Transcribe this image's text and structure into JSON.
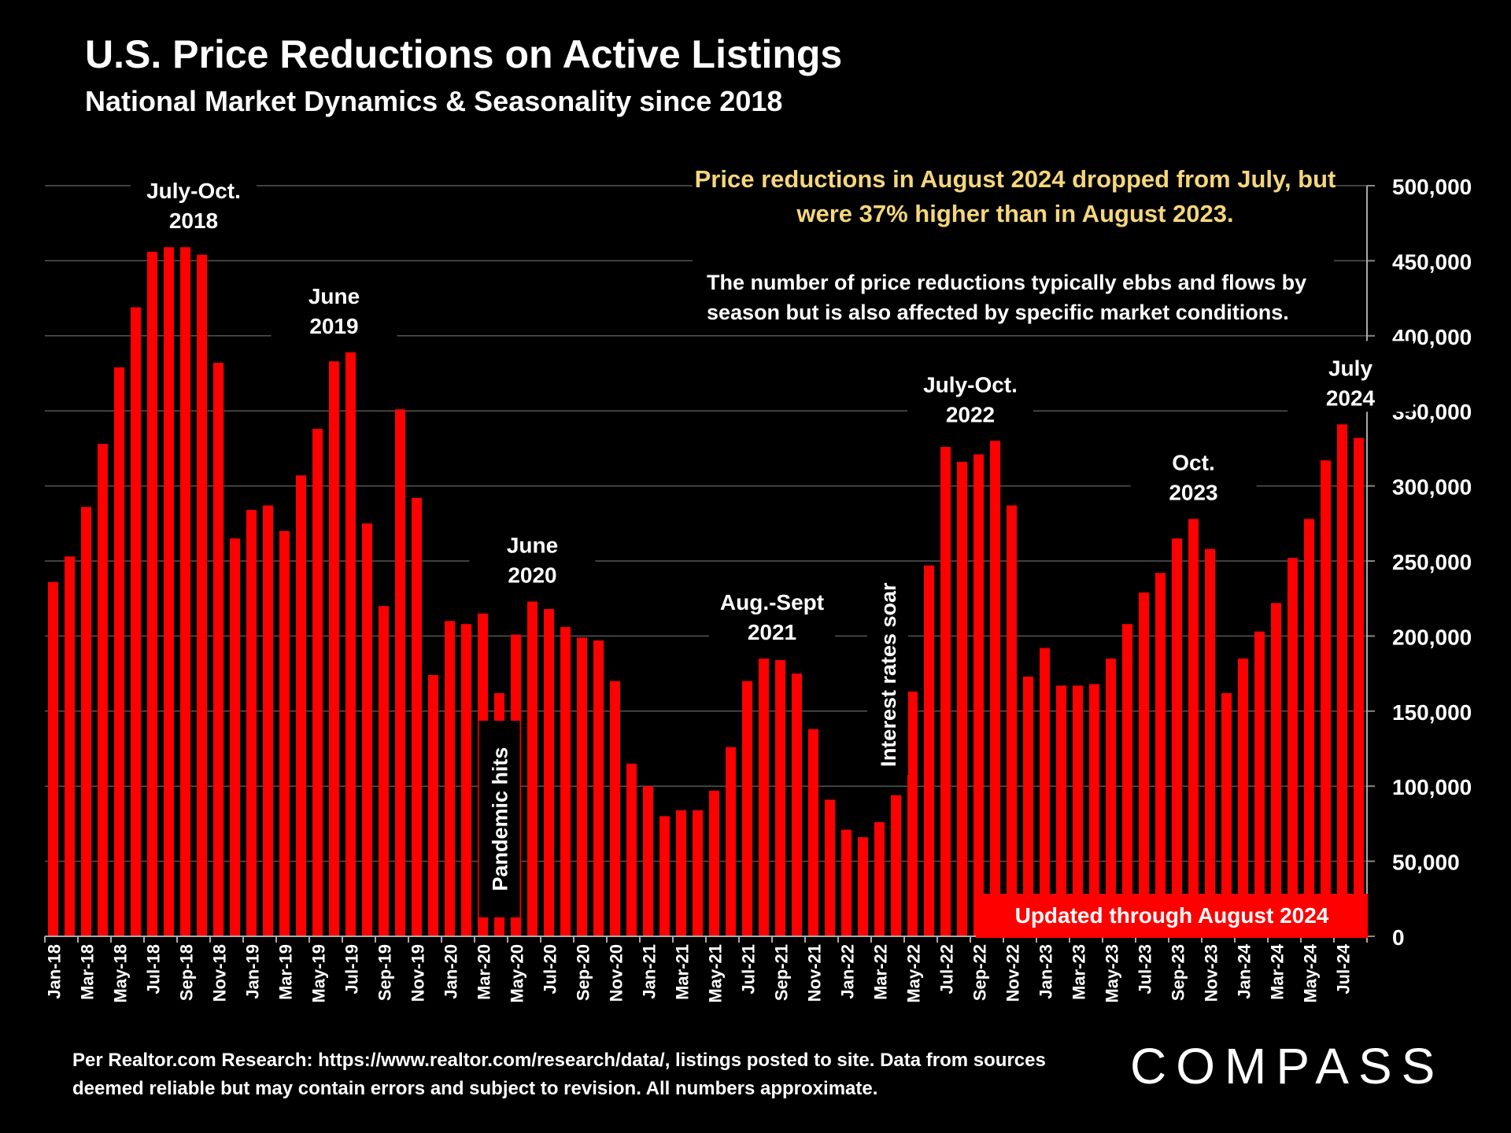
{
  "header": {
    "title": "U.S. Price Reductions on Active Listings",
    "subtitle": "National Market Dynamics & Seasonality since 2018"
  },
  "callouts": {
    "headline": "Price reductions in August 2024 dropped from July, but were 37% higher than in August 2023.",
    "note": "The number of price reductions typically ebbs and flows by season but is also affected by specific market conditions.",
    "updated_badge": "Updated through August 2024"
  },
  "footer": {
    "source": "Per Realtor.com Research:  https://www.realtor.com/research/data/, listings posted to site. Data from sources deemed reliable but may contain errors and subject to revision. All numbers approximate."
  },
  "brand": {
    "logo_text": "COMPASS"
  },
  "colors": {
    "bar": "#ff0000",
    "grid": "#555555",
    "background": "#000000",
    "headline": "#f5d67a"
  },
  "chart_data": {
    "type": "bar",
    "x": [
      "Jan-18",
      "Feb-18",
      "Mar-18",
      "Apr-18",
      "May-18",
      "Jun-18",
      "Jul-18",
      "Aug-18",
      "Sep-18",
      "Oct-18",
      "Nov-18",
      "Dec-18",
      "Jan-19",
      "Feb-19",
      "Mar-19",
      "Apr-19",
      "May-19",
      "Jun-19",
      "Jul-19",
      "Aug-19",
      "Sep-19",
      "Oct-19",
      "Nov-19",
      "Dec-19",
      "Jan-20",
      "Feb-20",
      "Mar-20",
      "Apr-20",
      "May-20",
      "Jun-20",
      "Jul-20",
      "Aug-20",
      "Sep-20",
      "Oct-20",
      "Nov-20",
      "Dec-20",
      "Jan-21",
      "Feb-21",
      "Mar-21",
      "Apr-21",
      "May-21",
      "Jun-21",
      "Jul-21",
      "Aug-21",
      "Sep-21",
      "Oct-21",
      "Nov-21",
      "Dec-21",
      "Jan-22",
      "Feb-22",
      "Mar-22",
      "Apr-22",
      "May-22",
      "Jun-22",
      "Jul-22",
      "Aug-22",
      "Sep-22",
      "Oct-22",
      "Nov-22",
      "Dec-22",
      "Jan-23",
      "Feb-23",
      "Mar-23",
      "Apr-23",
      "May-23",
      "Jun-23",
      "Jul-23",
      "Aug-23",
      "Sep-23",
      "Oct-23",
      "Nov-23",
      "Dec-23",
      "Jan-24",
      "Feb-24",
      "Mar-24",
      "Apr-24",
      "May-24",
      "Jun-24",
      "Jul-24",
      "Aug-24"
    ],
    "values": [
      236000,
      253000,
      286000,
      328000,
      379000,
      419000,
      456000,
      459000,
      459000,
      454000,
      382000,
      265000,
      284000,
      287000,
      270000,
      307000,
      338000,
      383000,
      389000,
      275000,
      220000,
      351000,
      292000,
      174000,
      210000,
      208000,
      215000,
      162000,
      201000,
      223000,
      218000,
      206000,
      199000,
      197000,
      170000,
      115000,
      100000,
      80000,
      84000,
      84000,
      97000,
      126000,
      170000,
      185000,
      184000,
      175000,
      138000,
      91000,
      71000,
      66000,
      76000,
      94000,
      163000,
      247000,
      326000,
      316000,
      321000,
      330000,
      287000,
      173000,
      192000,
      167000,
      167000,
      168000,
      185000,
      208000,
      229000,
      242000,
      265000,
      278000,
      258000,
      162000,
      185000,
      203000,
      222000,
      252000,
      278000,
      317000,
      341000,
      332000
    ],
    "tick_labels": [
      "Jan-18",
      "Mar-18",
      "May-18",
      "Jul-18",
      "Sep-18",
      "Nov-18",
      "Jan-19",
      "Mar-19",
      "May-19",
      "Jul-19",
      "Sep-19",
      "Nov-19",
      "Jan-20",
      "Mar-20",
      "May-20",
      "Jul-20",
      "Sep-20",
      "Nov-20",
      "Jan-21",
      "Mar-21",
      "May-21",
      "Jul-21",
      "Sep-21",
      "Nov-21",
      "Jan-22",
      "Mar-22",
      "May-22",
      "Jul-22",
      "Sep-22",
      "Nov-22",
      "Jan-23",
      "Mar-23",
      "May-23",
      "Jul-23",
      "Sep-23",
      "Nov-23",
      "Jan-24",
      "Mar-24",
      "May-24",
      "Jul-24"
    ],
    "y_ticks": [
      "0",
      "50,000",
      "100,000",
      "150,000",
      "200,000",
      "250,000",
      "300,000",
      "350,000",
      "400,000",
      "450,000",
      "500,000"
    ],
    "ylim": [
      0,
      500000
    ],
    "y_axis_side": "right",
    "grid": true,
    "annotations": [
      {
        "text": [
          "July-Oct.",
          "2018"
        ],
        "index": 8.5
      },
      {
        "text": [
          "June",
          "2019"
        ],
        "index": 17
      },
      {
        "text": [
          "June",
          "2020"
        ],
        "index": 29
      },
      {
        "text": [
          "Aug.-Sept",
          "2021"
        ],
        "index": 43.5
      },
      {
        "text": [
          "July-Oct.",
          "2022"
        ],
        "index": 55.5
      },
      {
        "text": [
          "Oct.",
          "2023"
        ],
        "index": 69
      },
      {
        "text": [
          "July",
          "2024"
        ],
        "index": 78.5
      },
      {
        "text": [
          "Pandemic hits"
        ],
        "index": 27,
        "vertical": true
      },
      {
        "text": [
          "Interest rates soar"
        ],
        "index": 50.5,
        "vertical": true
      }
    ]
  }
}
